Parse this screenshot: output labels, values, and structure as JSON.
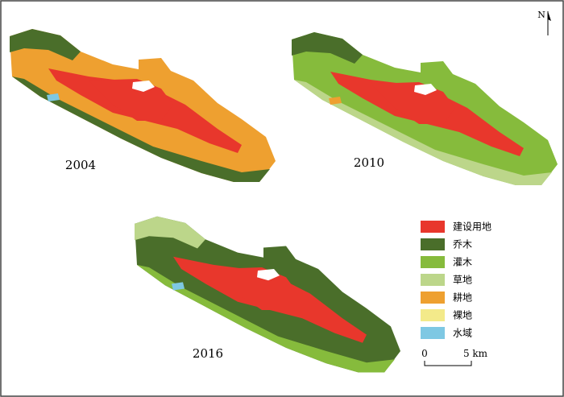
{
  "maps": [
    {
      "year": "2004"
    },
    {
      "year": "2010"
    },
    {
      "year": "2016"
    }
  ],
  "legend": [
    {
      "label": "建设用地",
      "color": "#e8372c"
    },
    {
      "label": "乔木",
      "color": "#4a6e2a"
    },
    {
      "label": "灌木",
      "color": "#86bb3c"
    },
    {
      "label": "草地",
      "color": "#bcd68a"
    },
    {
      "label": "耕地",
      "color": "#eea030"
    },
    {
      "label": "裸地",
      "color": "#f3ea8a"
    },
    {
      "label": "水域",
      "color": "#7ec8e3"
    }
  ],
  "scale_bar": {
    "start": "0",
    "end": "5 km"
  },
  "north": "N"
}
